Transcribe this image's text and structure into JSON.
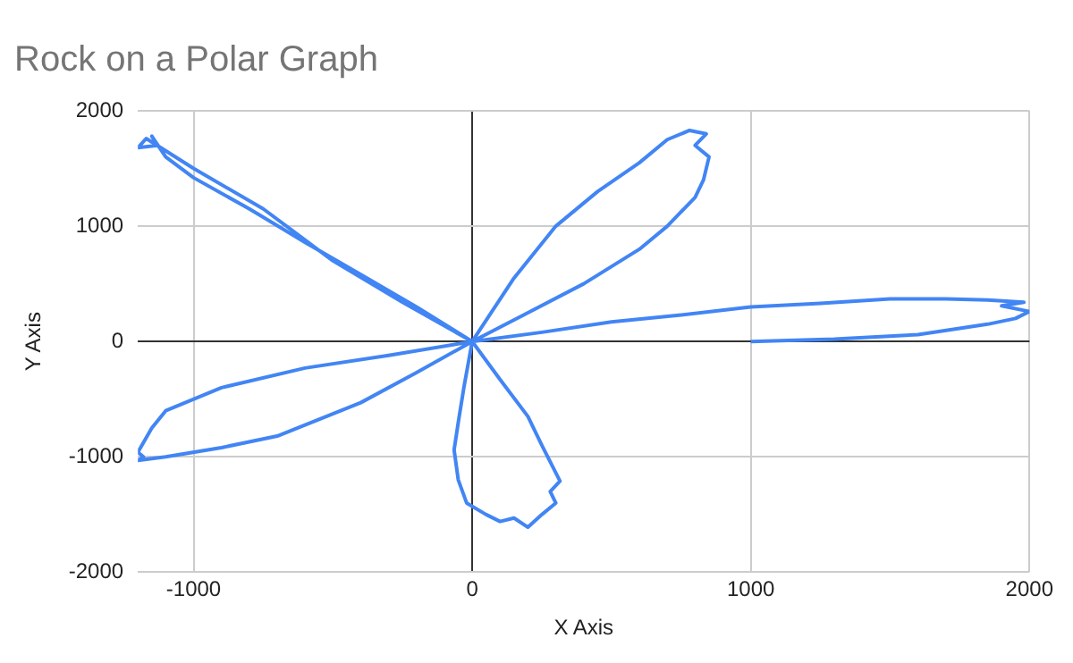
{
  "chart_data": {
    "type": "line",
    "title": "Rock on a Polar Graph",
    "xlabel": "X Axis",
    "ylabel": "Y Axis",
    "xlim": [
      -1200,
      2000
    ],
    "xticks": [
      -1000,
      0,
      1000,
      2000
    ],
    "ylim": [
      -2000,
      2000
    ],
    "yticks": [
      -2000,
      -1000,
      0,
      1000,
      2000
    ],
    "grid": true,
    "legend": false,
    "marker": "none",
    "line_style": "solid",
    "series": [
      {
        "color": "#4285f4",
        "x": [
          1000,
          1300,
          1600,
          1850,
          1950,
          2000,
          1900,
          1980,
          1850,
          1700,
          1500,
          1250,
          1000,
          750,
          500,
          250,
          0,
          200,
          400,
          600,
          700,
          800,
          830,
          850,
          800,
          840,
          780,
          700,
          600,
          450,
          300,
          150,
          0,
          -200,
          -400,
          -600,
          -800,
          -1000,
          -1100,
          -1150,
          -1130,
          -1200,
          -1170,
          -1000,
          -750,
          -500,
          -250,
          0,
          -300,
          -600,
          -900,
          -1100,
          -1150,
          -1200,
          -1180,
          -1200,
          -1100,
          -900,
          -700,
          -400,
          -200,
          0,
          -30,
          -50,
          -65,
          -50,
          -20,
          50,
          100,
          150,
          200,
          250,
          300,
          280,
          315,
          250,
          200,
          100,
          0
        ],
        "values": [
          0,
          20,
          60,
          150,
          200,
          260,
          310,
          340,
          360,
          370,
          370,
          330,
          300,
          230,
          170,
          80,
          0,
          250,
          500,
          800,
          1000,
          1250,
          1400,
          1600,
          1700,
          1800,
          1830,
          1750,
          1550,
          1300,
          1000,
          550,
          0,
          300,
          580,
          860,
          1150,
          1420,
          1600,
          1780,
          1700,
          1680,
          1760,
          1500,
          1150,
          700,
          340,
          0,
          -120,
          -230,
          -400,
          -600,
          -750,
          -960,
          -1000,
          -1030,
          -1000,
          -920,
          -820,
          -530,
          -270,
          0,
          -400,
          -700,
          -940,
          -1200,
          -1400,
          -1500,
          -1560,
          -1530,
          -1610,
          -1500,
          -1400,
          -1300,
          -1210,
          -900,
          -650,
          -330,
          0
        ]
      }
    ]
  }
}
